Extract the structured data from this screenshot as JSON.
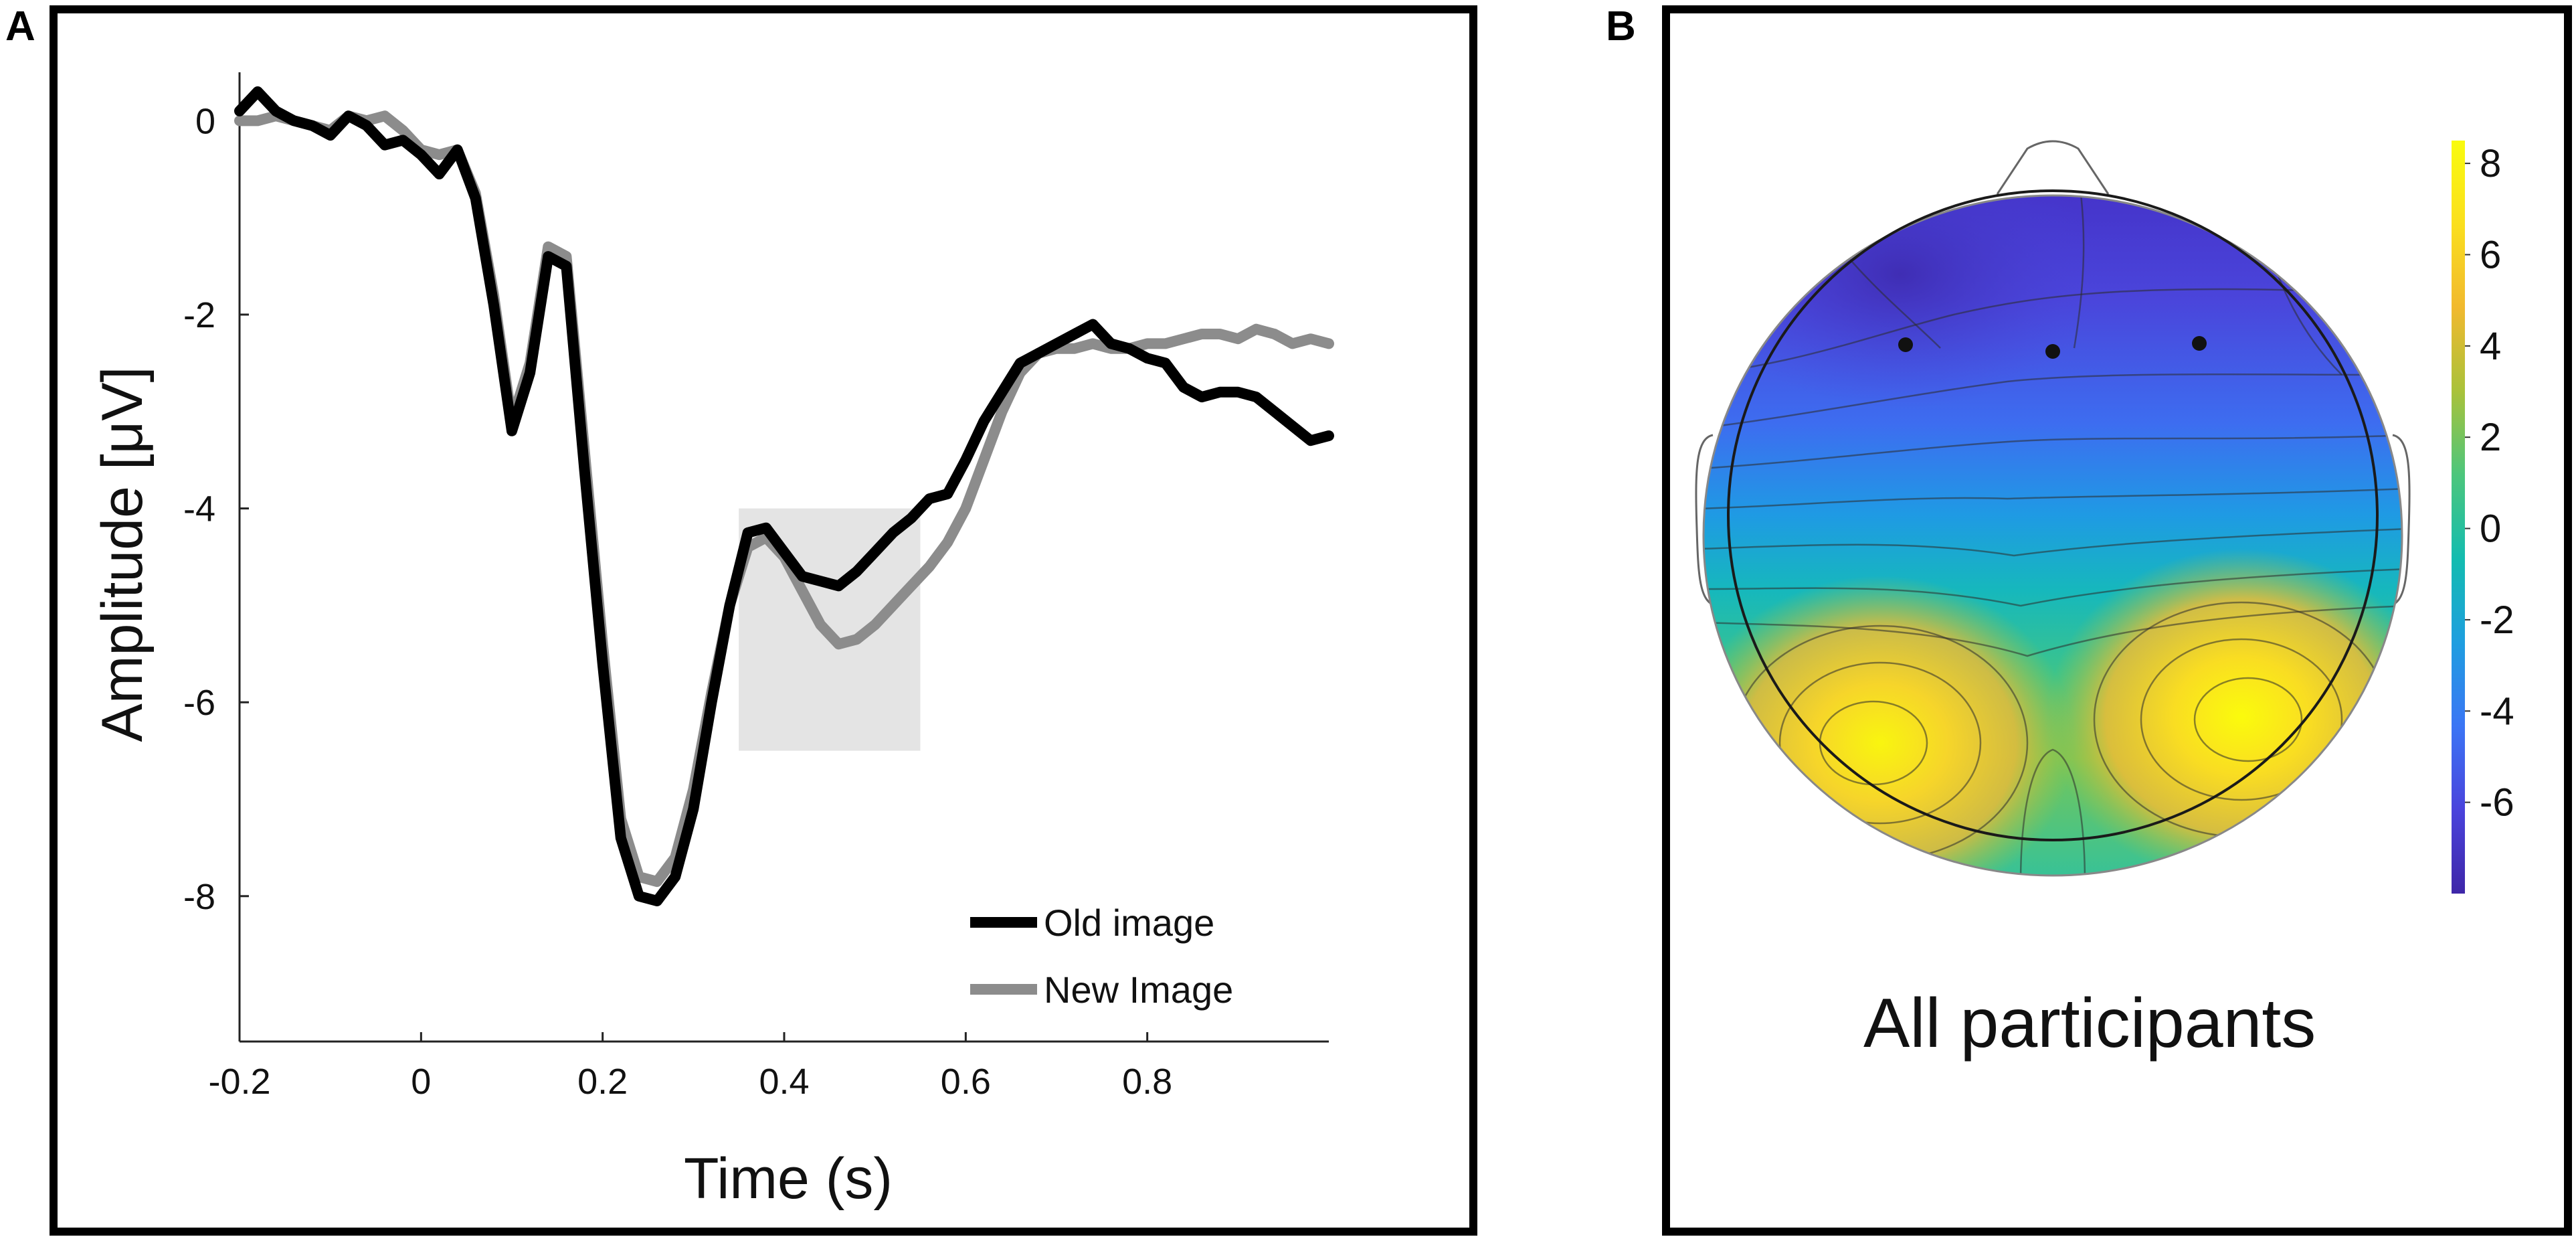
{
  "panels": {
    "a_label": "A",
    "b_label": "B"
  },
  "chart_data": [
    {
      "type": "line",
      "title": "",
      "xlabel": "Time (s)",
      "ylabel": "Amplitude [μV]",
      "xlim": [
        -0.2,
        1.0
      ],
      "ylim": [
        -9.5,
        0.5
      ],
      "xticks": [
        -0.2,
        0,
        0.2,
        0.4,
        0.6,
        0.8
      ],
      "xtick_labels": [
        "-0.2",
        "0",
        "0.2",
        "0.4",
        "0.6",
        "0.8"
      ],
      "yticks": [
        0,
        -2,
        -4,
        -6,
        -8
      ],
      "ytick_labels": [
        "0",
        "-2",
        "-4",
        "-6",
        "-8"
      ],
      "shaded_window": {
        "x": [
          0.35,
          0.55
        ],
        "y": [
          -6.5,
          -4.0
        ],
        "color": "#e4e4e4"
      },
      "legend_position": "bottom-right",
      "series": [
        {
          "name": "Old image",
          "color": "#000000",
          "points": [
            [
              -0.2,
              0.1
            ],
            [
              -0.18,
              0.3
            ],
            [
              -0.16,
              0.1
            ],
            [
              -0.14,
              0.0
            ],
            [
              -0.12,
              -0.05
            ],
            [
              -0.1,
              -0.15
            ],
            [
              -0.08,
              0.05
            ],
            [
              -0.06,
              -0.05
            ],
            [
              -0.04,
              -0.25
            ],
            [
              -0.02,
              -0.2
            ],
            [
              0.0,
              -0.35
            ],
            [
              0.02,
              -0.55
            ],
            [
              0.04,
              -0.3
            ],
            [
              0.06,
              -0.8
            ],
            [
              0.08,
              -1.9
            ],
            [
              0.1,
              -3.2
            ],
            [
              0.12,
              -2.6
            ],
            [
              0.14,
              -1.4
            ],
            [
              0.16,
              -1.5
            ],
            [
              0.18,
              -3.6
            ],
            [
              0.2,
              -5.6
            ],
            [
              0.22,
              -7.4
            ],
            [
              0.24,
              -8.0
            ],
            [
              0.26,
              -8.05
            ],
            [
              0.28,
              -7.8
            ],
            [
              0.3,
              -7.1
            ],
            [
              0.32,
              -6.0
            ],
            [
              0.34,
              -5.0
            ],
            [
              0.36,
              -4.25
            ],
            [
              0.38,
              -4.2
            ],
            [
              0.4,
              -4.45
            ],
            [
              0.42,
              -4.7
            ],
            [
              0.44,
              -4.75
            ],
            [
              0.46,
              -4.8
            ],
            [
              0.48,
              -4.65
            ],
            [
              0.5,
              -4.45
            ],
            [
              0.52,
              -4.25
            ],
            [
              0.54,
              -4.1
            ],
            [
              0.56,
              -3.9
            ],
            [
              0.58,
              -3.85
            ],
            [
              0.6,
              -3.5
            ],
            [
              0.62,
              -3.1
            ],
            [
              0.64,
              -2.8
            ],
            [
              0.66,
              -2.5
            ],
            [
              0.68,
              -2.4
            ],
            [
              0.7,
              -2.3
            ],
            [
              0.72,
              -2.2
            ],
            [
              0.74,
              -2.1
            ],
            [
              0.76,
              -2.3
            ],
            [
              0.78,
              -2.35
            ],
            [
              0.8,
              -2.45
            ],
            [
              0.82,
              -2.5
            ],
            [
              0.84,
              -2.75
            ],
            [
              0.86,
              -2.85
            ],
            [
              0.88,
              -2.8
            ],
            [
              0.9,
              -2.8
            ],
            [
              0.92,
              -2.85
            ],
            [
              0.94,
              -3.0
            ],
            [
              0.96,
              -3.15
            ],
            [
              0.98,
              -3.3
            ],
            [
              1.0,
              -3.25
            ]
          ]
        },
        {
          "name": "New Image",
          "color": "#8c8c8c",
          "points": [
            [
              -0.2,
              0.0
            ],
            [
              -0.18,
              0.0
            ],
            [
              -0.16,
              0.05
            ],
            [
              -0.14,
              0.0
            ],
            [
              -0.12,
              -0.05
            ],
            [
              -0.1,
              -0.1
            ],
            [
              -0.08,
              0.05
            ],
            [
              -0.06,
              0.0
            ],
            [
              -0.04,
              0.05
            ],
            [
              -0.02,
              -0.1
            ],
            [
              0.0,
              -0.3
            ],
            [
              0.02,
              -0.35
            ],
            [
              0.04,
              -0.3
            ],
            [
              0.06,
              -0.75
            ],
            [
              0.08,
              -1.8
            ],
            [
              0.1,
              -3.1
            ],
            [
              0.12,
              -2.5
            ],
            [
              0.14,
              -1.3
            ],
            [
              0.16,
              -1.4
            ],
            [
              0.18,
              -3.4
            ],
            [
              0.2,
              -5.4
            ],
            [
              0.22,
              -7.2
            ],
            [
              0.24,
              -7.8
            ],
            [
              0.26,
              -7.85
            ],
            [
              0.28,
              -7.6
            ],
            [
              0.3,
              -6.9
            ],
            [
              0.32,
              -5.9
            ],
            [
              0.34,
              -5.0
            ],
            [
              0.36,
              -4.4
            ],
            [
              0.38,
              -4.3
            ],
            [
              0.4,
              -4.5
            ],
            [
              0.42,
              -4.85
            ],
            [
              0.44,
              -5.2
            ],
            [
              0.46,
              -5.4
            ],
            [
              0.48,
              -5.35
            ],
            [
              0.5,
              -5.2
            ],
            [
              0.52,
              -5.0
            ],
            [
              0.54,
              -4.8
            ],
            [
              0.56,
              -4.6
            ],
            [
              0.58,
              -4.35
            ],
            [
              0.6,
              -4.0
            ],
            [
              0.62,
              -3.5
            ],
            [
              0.64,
              -3.0
            ],
            [
              0.66,
              -2.6
            ],
            [
              0.68,
              -2.4
            ],
            [
              0.7,
              -2.35
            ],
            [
              0.72,
              -2.35
            ],
            [
              0.74,
              -2.3
            ],
            [
              0.76,
              -2.35
            ],
            [
              0.78,
              -2.35
            ],
            [
              0.8,
              -2.3
            ],
            [
              0.82,
              -2.3
            ],
            [
              0.84,
              -2.25
            ],
            [
              0.86,
              -2.2
            ],
            [
              0.88,
              -2.2
            ],
            [
              0.9,
              -2.25
            ],
            [
              0.92,
              -2.15
            ],
            [
              0.94,
              -2.2
            ],
            [
              0.96,
              -2.3
            ],
            [
              0.98,
              -2.25
            ],
            [
              1.0,
              -2.3
            ]
          ]
        }
      ]
    },
    {
      "type": "heatmap",
      "title": "All participants",
      "subtype": "scalp topography",
      "colorbar_range": [
        -8,
        8.5
      ],
      "colorbar_ticks": [
        8,
        6,
        4,
        2,
        0,
        -2,
        -4,
        -6
      ],
      "colorbar_tick_labels": [
        "8",
        "6",
        "4",
        "2",
        "0",
        "-2",
        "-4",
        "-6"
      ],
      "colormap": [
        "#3e26a8",
        "#4a43dc",
        "#3b75f5",
        "#1e9ee0",
        "#13bcb0",
        "#4cc67c",
        "#a9c23a",
        "#f1b92f",
        "#fadf1e",
        "#f9fb0e"
      ],
      "electrodes_marked": 3
    }
  ]
}
